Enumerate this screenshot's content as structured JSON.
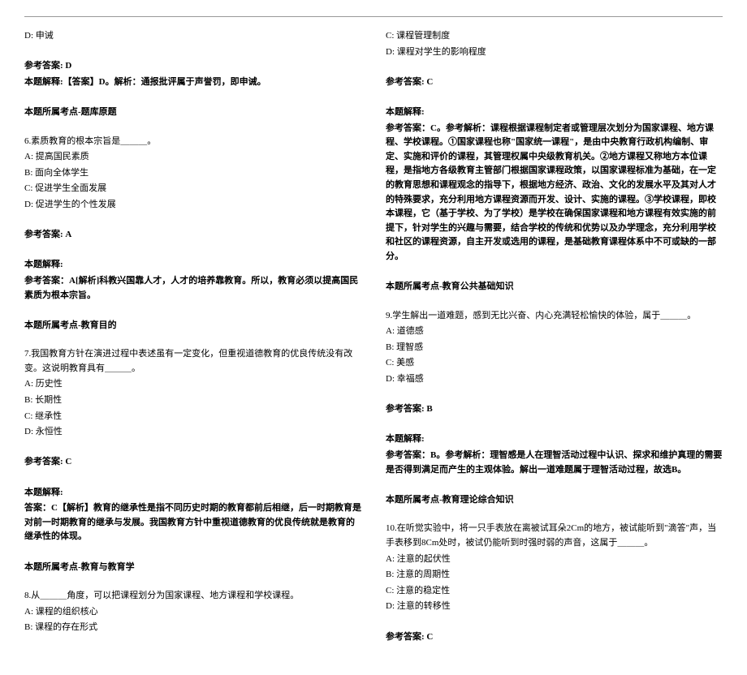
{
  "left_column": {
    "q5": {
      "option_d": "D: 申诫",
      "answer_label": "参考答案: D",
      "explain": "本题解释:【答案】D。解析：通报批评属于声誉罚，即申诫。",
      "topic": "本题所属考点-题库原题"
    },
    "q6": {
      "stem": "6.素质教育的根本宗旨是＿＿＿。",
      "option_a": "A: 提高国民素质",
      "option_b": "B: 面向全体学生",
      "option_c": "C: 促进学生全面发展",
      "option_d": "D: 促进学生的个性发展",
      "answer_label": "参考答案: A",
      "explain_label": "本题解释:",
      "explain": "参考答案：A[解析]科教兴国靠人才，人才的培养靠教育。所以，教育必须以提高国民素质为根本宗旨。",
      "topic": "本题所属考点-教育目的"
    },
    "q7": {
      "stem": "7.我国教育方针在演进过程中表述虽有一定变化，但重视道德教育的优良传统没有改变。这说明教育具有＿＿＿。",
      "option_a": "A: 历史性",
      "option_b": "B: 长期性",
      "option_c": "C: 继承性",
      "option_d": "D: 永恒性",
      "answer_label": "参考答案: C",
      "explain_label": "本题解释:",
      "explain": "答案：C【解析】教育的继承性是指不同历史时期的教育都前后相继，后一时期教育是对前一时期教育的继承与发展。我国教育方针中重视道德教育的优良传统就是教育的继承性的体现。",
      "topic": "本题所属考点-教育与教育学"
    },
    "q8": {
      "stem": "8.从＿＿＿角度，可以把课程划分为国家课程、地方课程和学校课程。",
      "option_a": "A: 课程的组织核心",
      "option_b": "B: 课程的存在形式"
    }
  },
  "right_column": {
    "q8_cont": {
      "option_c": "C: 课程管理制度",
      "option_d": "D: 课程对学生的影响程度",
      "answer_label": "参考答案: C",
      "explain_label": "本题解释:",
      "explain": "参考答案：C。参考解析：课程根据课程制定者或管理层次划分为国家课程、地方课程、学校课程。①国家课程也称\"国家统一课程\"，是由中央教育行政机构编制、审定、实施和评价的课程，其管理权属中央级教育机关。②地方课程又称地方本位课程，是指地方各级教育主管部门根据国家课程政策，以国家课程标准为基础，在一定的教育思想和课程观念的指导下，根据地方经济、政治、文化的发展水平及其对人才的特殊要求，充分利用地方课程资源而开发、设计、实施的课程。③学校课程，即校本课程，它（基于学校、为了学校）是学校在确保国家课程和地方课程有效实施的前提下，针对学生的兴趣与需要，结合学校的传统和优势以及办学理念，充分利用学校和社区的课程资源，自主开发或选用的课程，是基础教育课程体系中不可或缺的一部分。",
      "topic": "本题所属考点-教育公共基础知识"
    },
    "q9": {
      "stem": "9.学生解出一道难题，感到无比兴奋、内心充满轻松愉快的体验，属于＿＿＿。",
      "option_a": "A: 道德感",
      "option_b": "B: 理智感",
      "option_c": "C: 美感",
      "option_d": "D: 幸福感",
      "answer_label": "参考答案: B",
      "explain_label": "本题解释:",
      "explain": "参考答案：B。参考解析：理智感是人在理智活动过程中认识、探求和维护真理的需要是否得到满足而产生的主观体验。解出一道难题属于理智活动过程，故选B。",
      "topic": "本题所属考点-教育理论综合知识"
    },
    "q10": {
      "stem": "10.在听觉实验中，将一只手表放在离被试耳朵2Cm的地方，被试能听到\"滴答\"声，当手表移到8Cm处时，被试仍能听到时强时弱的声音，这属于＿＿＿。",
      "option_a": "A: 注意的起伏性",
      "option_b": "B: 注意的周期性",
      "option_c": "  C: 注意的稳定性",
      "option_d": "D: 注意的转移性",
      "answer_label": "参考答案: C"
    }
  }
}
